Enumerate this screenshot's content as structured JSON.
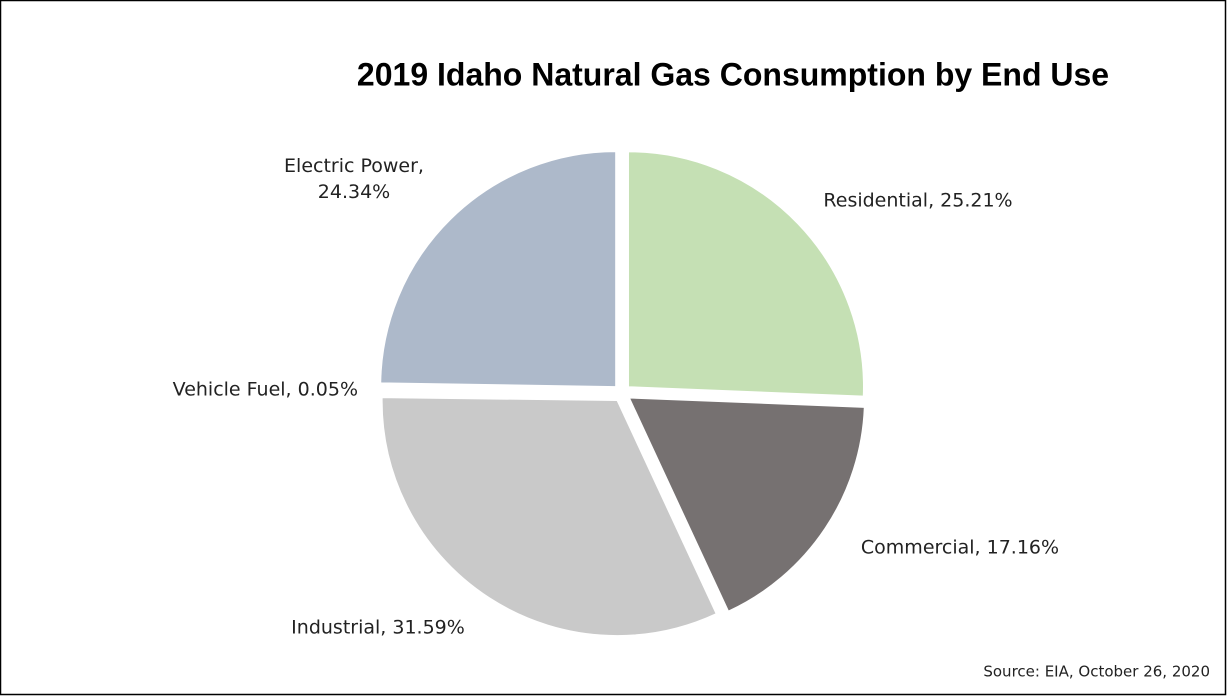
{
  "chart_data": {
    "type": "pie",
    "title": "2019 Idaho Natural Gas Consumption by End Use",
    "values": [
      25.21,
      17.16,
      31.59,
      0.05,
      24.34
    ],
    "value_labels": [
      "Residential, 25.21%",
      "Commercial, 17.16%",
      "Industrial, 31.59%",
      "Vehicle Fuel, 0.05%",
      "Electric Power, 24.34%"
    ],
    "colors": [
      "#c5e0b4",
      "#767171",
      "#c9c9c9",
      "#ffe699",
      "#adb9ca"
    ],
    "source": "Source: EIA, October 26, 2020"
  }
}
